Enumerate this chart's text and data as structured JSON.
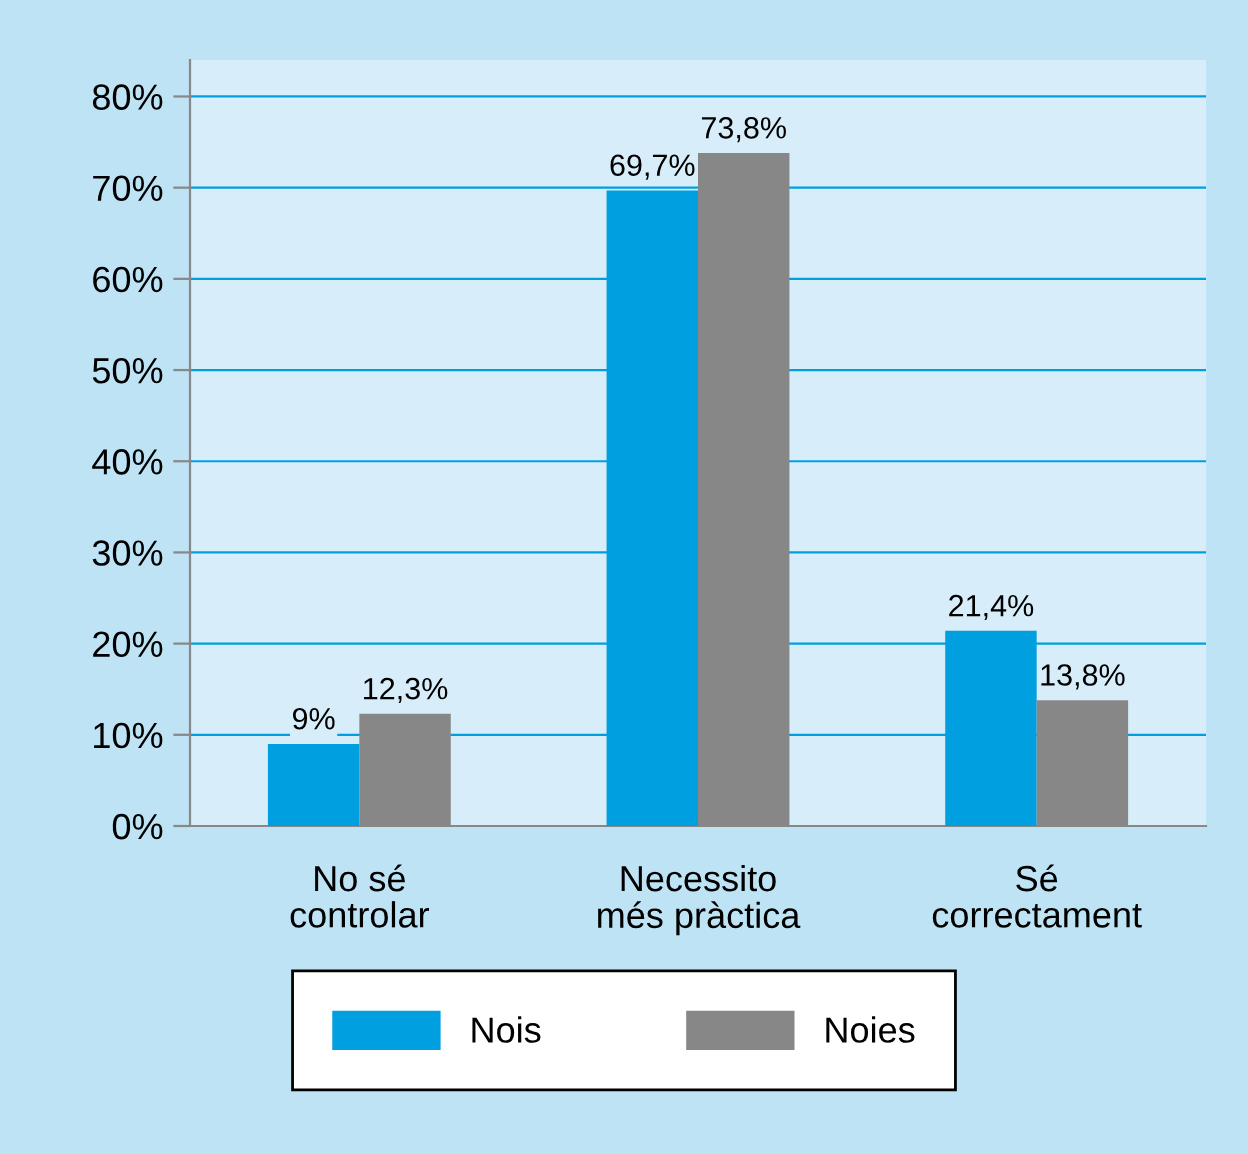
{
  "chart_data": {
    "type": "bar",
    "categories": [
      "No sé\ncontrolar",
      "Necessito\nmés pràctica",
      "Sé\ncorrectament"
    ],
    "series": [
      {
        "name": "Nois",
        "color": "#009fe0",
        "values": [
          9,
          69.7,
          21.4
        ],
        "value_labels": [
          "9%",
          "69,7%",
          "21,4%"
        ]
      },
      {
        "name": "Noies",
        "color": "#878787",
        "values": [
          12.3,
          73.8,
          13.8
        ],
        "value_labels": [
          "12,3%",
          "73,8%",
          "13,8%"
        ]
      }
    ],
    "ylim": [
      0,
      84
    ],
    "yticks": [
      {
        "value": 0,
        "label": "0%"
      },
      {
        "value": 10,
        "label": "10%"
      },
      {
        "value": 20,
        "label": "20%"
      },
      {
        "value": 30,
        "label": "30%"
      },
      {
        "value": 40,
        "label": "40%"
      },
      {
        "value": 50,
        "label": "50%"
      },
      {
        "value": 60,
        "label": "60%"
      },
      {
        "value": 70,
        "label": "70%"
      },
      {
        "value": 80,
        "label": "80%"
      }
    ],
    "grid": "y",
    "legend": "bottom"
  }
}
